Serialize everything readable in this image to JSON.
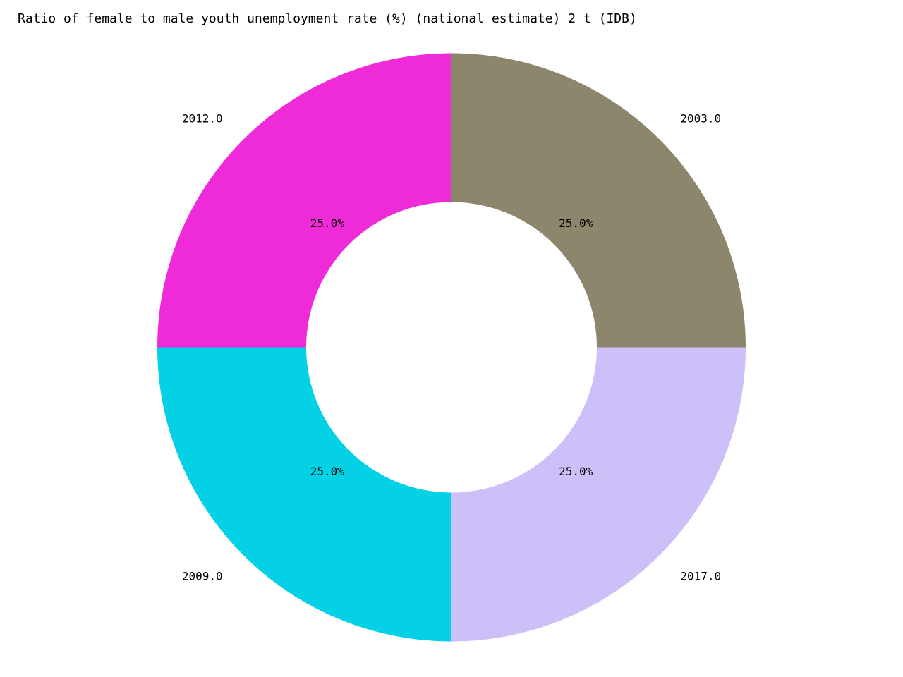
{
  "chart_data": {
    "type": "pie",
    "donut": true,
    "title": "Ratio of female to male youth unemployment rate (%) (national estimate) 2 t (IDB)",
    "slices": [
      {
        "label": "2012.0",
        "value": 25.0,
        "pct_label": "25.0%",
        "color": "#ee2ad9"
      },
      {
        "label": "2009.0",
        "value": 25.0,
        "pct_label": "25.0%",
        "color": "#04d0e6"
      },
      {
        "label": "2017.0",
        "value": 25.0,
        "pct_label": "25.0%",
        "color": "#cdbff8"
      },
      {
        "label": "2003.0",
        "value": 25.0,
        "pct_label": "25.0%",
        "color": "#8b866c"
      }
    ],
    "start_angle_deg": 90,
    "direction": "counterclockwise",
    "legend": "none"
  }
}
